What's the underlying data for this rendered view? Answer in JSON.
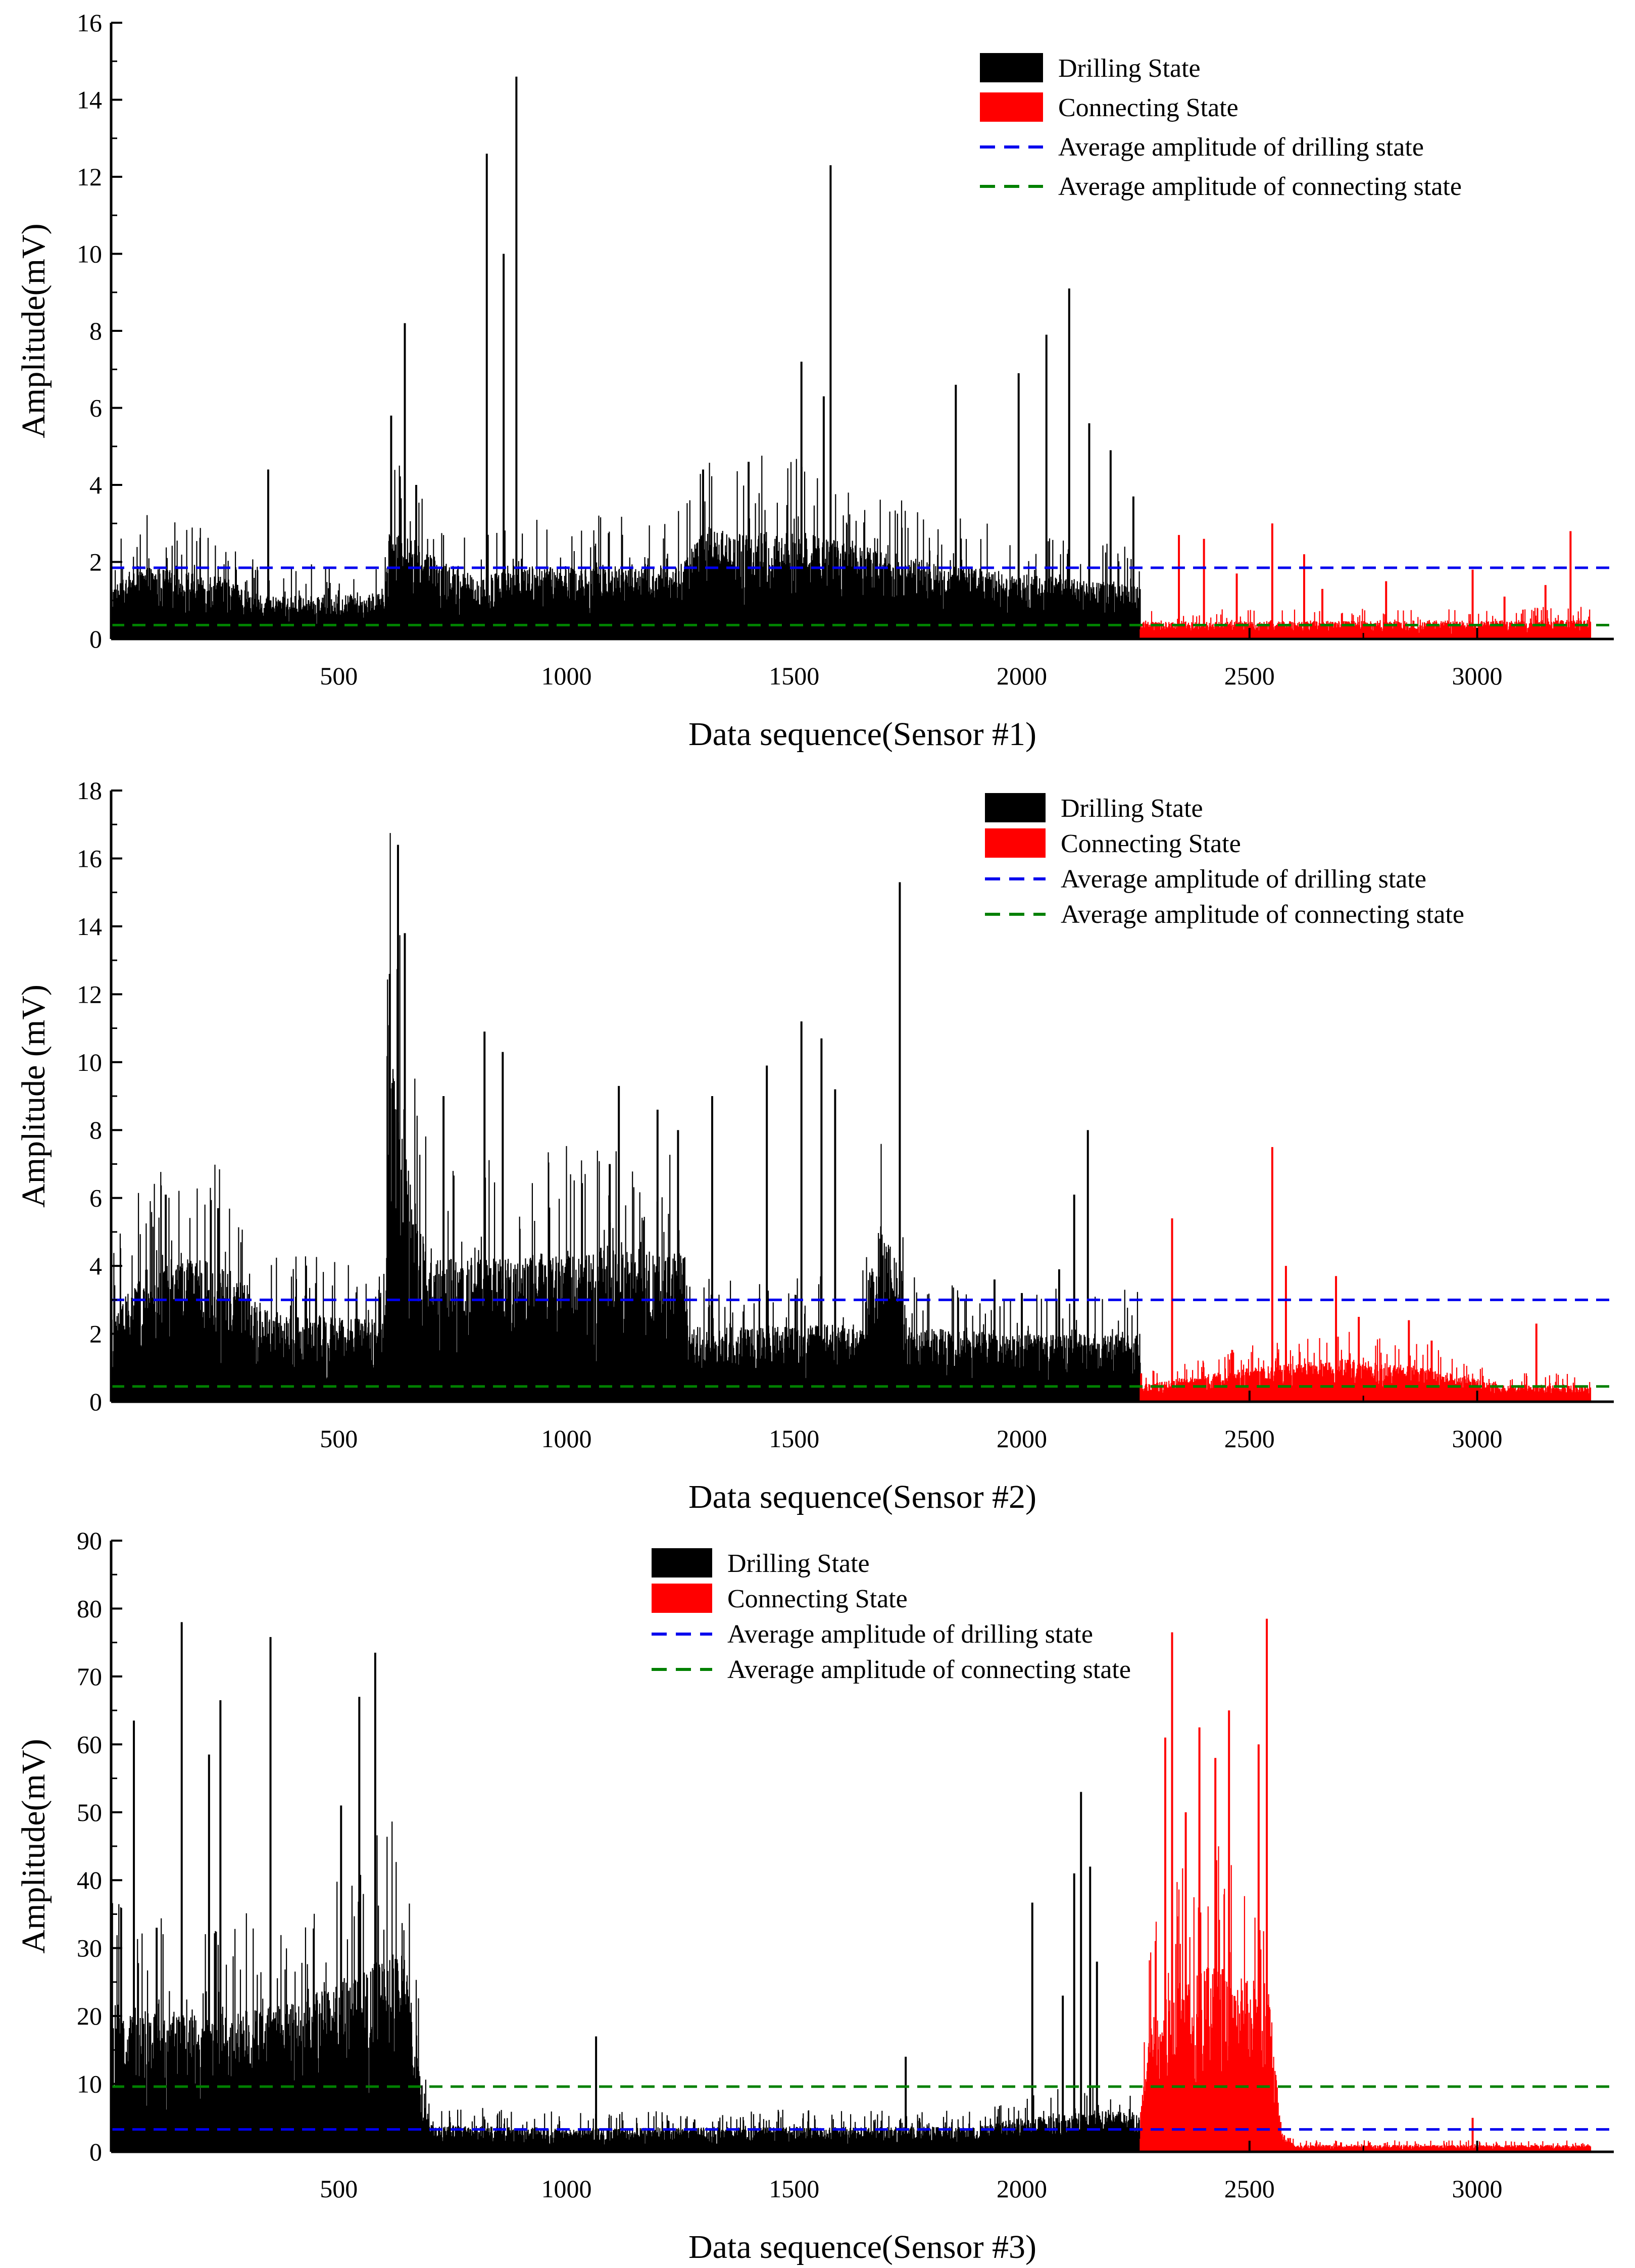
{
  "chart_data": [
    {
      "type": "bar",
      "panel": "sensor-1",
      "title": "",
      "xlabel": "Data sequence(Sensor #1)",
      "ylabel": "Amplitude(mV)",
      "xlim": [
        0,
        3300
      ],
      "ylim": [
        0,
        16
      ],
      "x_ticks": [
        500,
        1000,
        1500,
        2000,
        2500,
        3000
      ],
      "y_ticks": [
        0,
        2,
        4,
        6,
        8,
        10,
        12,
        14,
        16
      ],
      "state_boundary": 2260,
      "n_points": 3250,
      "legend_position": "top-right",
      "series": [
        {
          "name": "Drilling State",
          "color": "#000000",
          "x_range": [
            0,
            2260
          ],
          "baseline_envelope": [
            [
              0,
              1.4
            ],
            [
              80,
              1.9
            ],
            [
              250,
              1.6
            ],
            [
              330,
              1.1
            ],
            [
              600,
              1.2
            ],
            [
              610,
              3.0
            ],
            [
              700,
              2.2
            ],
            [
              800,
              1.6
            ],
            [
              900,
              1.9
            ],
            [
              1000,
              1.9
            ],
            [
              1250,
              2.0
            ],
            [
              1300,
              2.8
            ],
            [
              1500,
              2.8
            ],
            [
              1700,
              2.3
            ],
            [
              1800,
              2.0
            ],
            [
              2000,
              1.7
            ],
            [
              2260,
              1.4
            ]
          ],
          "peaks": [
            [
              345,
              4.4
            ],
            [
              615,
              5.8
            ],
            [
              645,
              8.2
            ],
            [
              670,
              4.0
            ],
            [
              825,
              12.6
            ],
            [
              862,
              10.0
            ],
            [
              890,
              14.6
            ],
            [
              1580,
              12.3
            ],
            [
              1516,
              7.2
            ],
            [
              1565,
              6.3
            ],
            [
              1855,
              6.6
            ],
            [
              1993,
              6.9
            ],
            [
              2054,
              7.9
            ],
            [
              2104,
              9.1
            ],
            [
              2148,
              5.6
            ],
            [
              2195,
              4.9
            ],
            [
              2245,
              3.7
            ],
            [
              1400,
              4.6
            ],
            [
              1300,
              4.4
            ]
          ]
        },
        {
          "name": "Connecting State",
          "color": "#ff0000",
          "x_range": [
            2260,
            3250
          ],
          "baseline_envelope": [
            [
              2260,
              0.45
            ],
            [
              3250,
              0.5
            ]
          ],
          "peaks": [
            [
              2345,
              2.7
            ],
            [
              2400,
              2.6
            ],
            [
              2472,
              1.7
            ],
            [
              2550,
              3.0
            ],
            [
              2620,
              2.2
            ],
            [
              2660,
              1.3
            ],
            [
              2800,
              1.5
            ],
            [
              2990,
              1.8
            ],
            [
              3060,
              1.1
            ],
            [
              3150,
              1.4
            ],
            [
              3205,
              2.8
            ]
          ]
        }
      ],
      "reference_lines": [
        {
          "name": "Average amplitude of drilling state",
          "value": 1.85,
          "color": "#0000ee",
          "style": "dashed"
        },
        {
          "name": "Average amplitude of connecting state",
          "value": 0.36,
          "color": "#008000",
          "style": "dashed"
        }
      ]
    },
    {
      "type": "bar",
      "panel": "sensor-2",
      "title": "",
      "xlabel": "Data sequence(Sensor #2)",
      "ylabel": "Amplitude (mV)",
      "xlim": [
        0,
        3300
      ],
      "ylim": [
        0,
        18
      ],
      "x_ticks": [
        500,
        1000,
        1500,
        2000,
        2500,
        3000
      ],
      "y_ticks": [
        0,
        2,
        4,
        6,
        8,
        10,
        12,
        14,
        16,
        18
      ],
      "state_boundary": 2260,
      "n_points": 3250,
      "legend_position": "top-right",
      "series": [
        {
          "name": "Drilling State",
          "color": "#000000",
          "x_range": [
            0,
            2260
          ],
          "baseline_envelope": [
            [
              0,
              2.6
            ],
            [
              100,
              4.3
            ],
            [
              250,
              4.1
            ],
            [
              350,
              2.6
            ],
            [
              600,
              2.4
            ],
            [
              610,
              10.5
            ],
            [
              650,
              7.5
            ],
            [
              700,
              4.2
            ],
            [
              900,
              4.3
            ],
            [
              1100,
              4.6
            ],
            [
              1260,
              4.4
            ],
            [
              1270,
              2.2
            ],
            [
              1650,
              2.3
            ],
            [
              1680,
              5.5
            ],
            [
              1740,
              4.0
            ],
            [
              1750,
              2.2
            ],
            [
              2000,
              2.0
            ],
            [
              2260,
              2.0
            ]
          ],
          "peaks": [
            [
              120,
              6.1
            ],
            [
              235,
              5.7
            ],
            [
              612,
              12.6
            ],
            [
              630,
              16.4
            ],
            [
              645,
              13.8
            ],
            [
              730,
              9.0
            ],
            [
              820,
              10.9
            ],
            [
              860,
              10.3
            ],
            [
              1095,
              7.0
            ],
            [
              1115,
              9.3
            ],
            [
              1200,
              8.6
            ],
            [
              1245,
              8.0
            ],
            [
              1320,
              9.0
            ],
            [
              1440,
              9.9
            ],
            [
              1516,
              11.2
            ],
            [
              1560,
              10.7
            ],
            [
              1590,
              9.2
            ],
            [
              1732,
              15.3
            ],
            [
              1940,
              3.6
            ],
            [
              2000,
              3.2
            ],
            [
              2082,
              3.9
            ],
            [
              2115,
              6.1
            ],
            [
              2145,
              8.0
            ]
          ]
        },
        {
          "name": "Connecting State",
          "color": "#ff0000",
          "x_range": [
            2260,
            3250
          ],
          "baseline_envelope": [
            [
              2260,
              0.5
            ],
            [
              2500,
              1.0
            ],
            [
              2700,
              1.3
            ],
            [
              2900,
              1.0
            ],
            [
              3050,
              0.5
            ],
            [
              3250,
              0.5
            ]
          ],
          "peaks": [
            [
              2330,
              5.4
            ],
            [
              2550,
              7.5
            ],
            [
              2580,
              4.0
            ],
            [
              2690,
              3.7
            ],
            [
              2740,
              2.5
            ],
            [
              2850,
              2.4
            ],
            [
              2900,
              1.8
            ],
            [
              3130,
              2.3
            ]
          ]
        }
      ],
      "reference_lines": [
        {
          "name": "Average amplitude of drilling state",
          "value": 3.0,
          "color": "#0000ee",
          "style": "dashed"
        },
        {
          "name": "Average amplitude of connecting state",
          "value": 0.45,
          "color": "#008000",
          "style": "dashed"
        }
      ]
    },
    {
      "type": "bar",
      "panel": "sensor-3",
      "title": "",
      "xlabel": "Data sequence(Sensor #3)",
      "ylabel": "Amplitude(mV)",
      "xlim": [
        0,
        3300
      ],
      "ylim": [
        0,
        90
      ],
      "x_ticks": [
        500,
        1000,
        1500,
        2000,
        2500,
        3000
      ],
      "y_ticks": [
        0,
        10,
        20,
        30,
        40,
        50,
        60,
        70,
        80,
        90
      ],
      "state_boundary": 2260,
      "n_points": 3250,
      "legend_position": "top-center",
      "series": [
        {
          "name": "Drilling State",
          "color": "#000000",
          "x_range": [
            0,
            2260
          ],
          "baseline_envelope": [
            [
              0,
              22
            ],
            [
              200,
              20
            ],
            [
              400,
              22
            ],
            [
              550,
              27
            ],
            [
              650,
              30
            ],
            [
              680,
              12
            ],
            [
              700,
              4
            ],
            [
              1000,
              3.5
            ],
            [
              1900,
              3.8
            ],
            [
              2000,
              5
            ],
            [
              2150,
              6
            ],
            [
              2260,
              6
            ]
          ],
          "peaks": [
            [
              50,
              63.5
            ],
            [
              100,
              33
            ],
            [
              155,
              78
            ],
            [
              215,
              58.5
            ],
            [
              240,
              66.5
            ],
            [
              350,
              75.8
            ],
            [
              505,
              51
            ],
            [
              545,
              67
            ],
            [
              580,
              73.5
            ],
            [
              1065,
              17
            ],
            [
              1745,
              14
            ],
            [
              2023,
              36.7
            ],
            [
              2090,
              23
            ],
            [
              2115,
              41
            ],
            [
              2130,
              53
            ],
            [
              2150,
              42
            ],
            [
              2165,
              28
            ]
          ]
        },
        {
          "name": "Connecting State",
          "color": "#ff0000",
          "x_range": [
            2260,
            3250
          ],
          "baseline_envelope": [
            [
              2260,
              5
            ],
            [
              2280,
              20
            ],
            [
              2400,
              28
            ],
            [
              2540,
              25
            ],
            [
              2570,
              3
            ],
            [
              2600,
              1.0
            ],
            [
              3250,
              1.0
            ]
          ],
          "peaks": [
            [
              2315,
              61
            ],
            [
              2330,
              76.5
            ],
            [
              2360,
              50
            ],
            [
              2390,
              62.5
            ],
            [
              2425,
              58
            ],
            [
              2455,
              65
            ],
            [
              2520,
              60
            ],
            [
              2538,
              78.5
            ],
            [
              2990,
              5
            ]
          ]
        }
      ],
      "reference_lines": [
        {
          "name": "Average amplitude of drilling state",
          "value": 3.3,
          "color": "#0000ee",
          "style": "dashed"
        },
        {
          "name": "Average amplitude of connecting state",
          "value": 9.6,
          "color": "#008000",
          "style": "dashed"
        }
      ]
    }
  ]
}
